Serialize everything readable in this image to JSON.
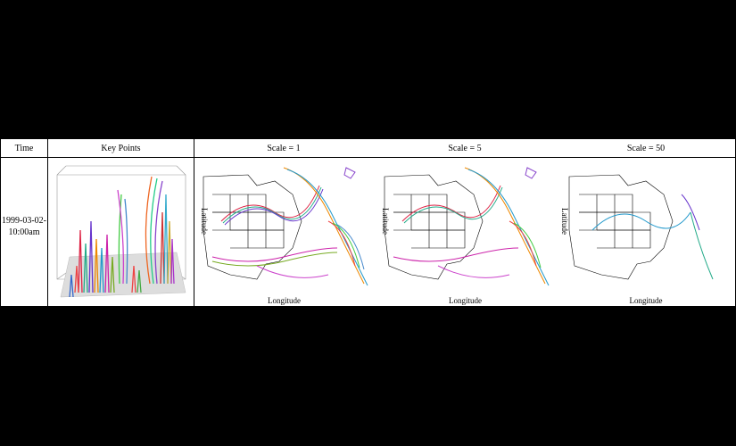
{
  "table": {
    "headers": {
      "time": "Time",
      "key_points": "Key Points",
      "scale1": "Scale = 1",
      "scale5": "Scale = 5",
      "scale50": "Scale = 50"
    },
    "row": {
      "time_line1": "1999-03-02-",
      "time_line2": "10:00am"
    },
    "axis": {
      "longitude": "Longitude",
      "latitude": "Latitude"
    }
  }
}
